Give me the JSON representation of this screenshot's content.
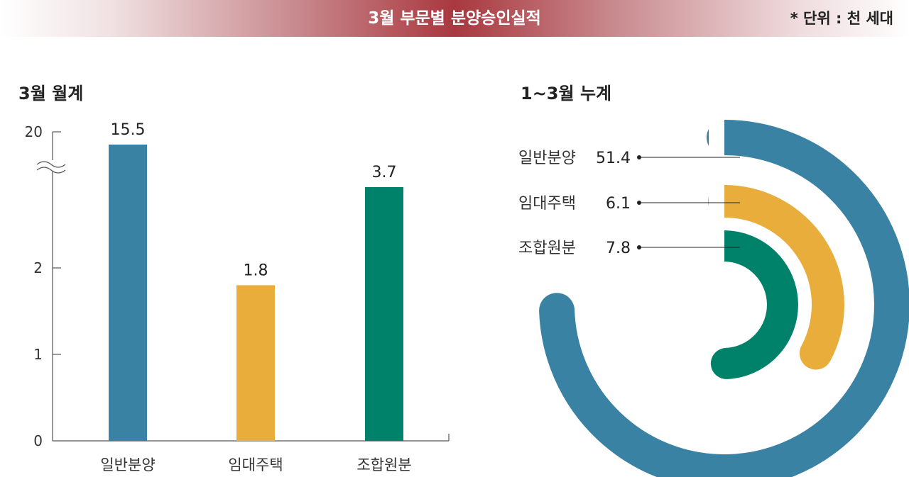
{
  "header": {
    "title": "3월 부문별 분양승인실적",
    "unit": "* 단위 : 천 세대"
  },
  "colors": {
    "general": "#3a82a3",
    "rental": "#e8ad3b",
    "union": "#00826a",
    "axis": "#555555"
  },
  "chart_data": [
    {
      "type": "bar",
      "title": "3월 월계",
      "categories": [
        "일반분양",
        "임대주택",
        "조합원분"
      ],
      "values": [
        15.5,
        1.8,
        3.7
      ],
      "value_labels": [
        "15.5",
        "1.8",
        "3.7"
      ],
      "y_ticks": [
        "0",
        "1",
        "2",
        "20"
      ],
      "axis_break": true,
      "ylim": [
        0,
        20
      ]
    },
    {
      "type": "pie",
      "title": "1~3월 누계",
      "categories": [
        "일반분양",
        "임대주택",
        "조합원분"
      ],
      "values": [
        51.4,
        6.1,
        7.8
      ],
      "value_labels": [
        "51.4",
        "6.1",
        "7.8"
      ]
    }
  ]
}
